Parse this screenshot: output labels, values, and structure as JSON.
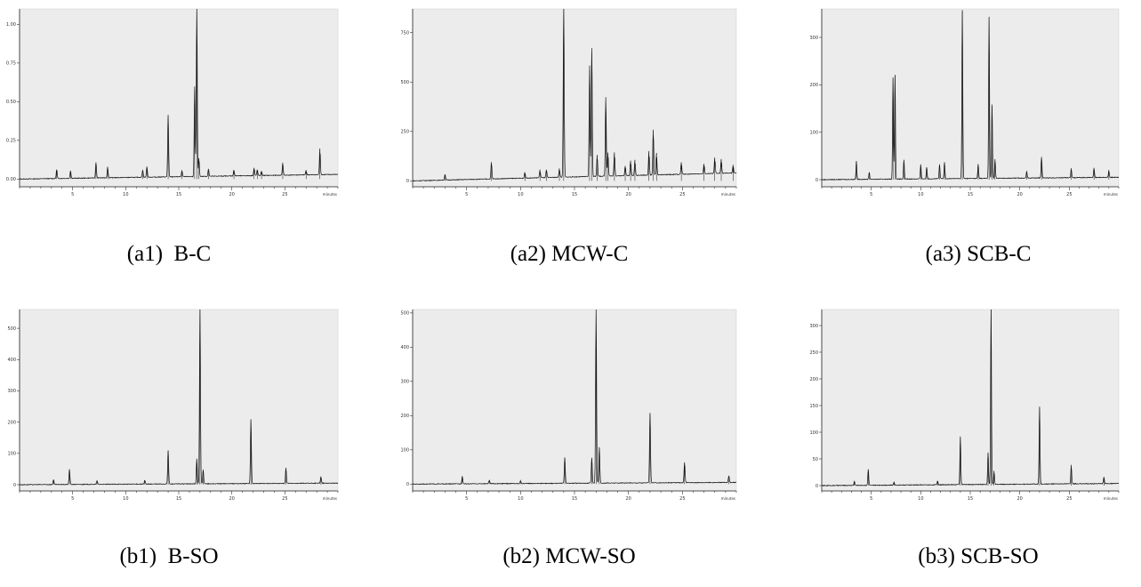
{
  "chart_data": [
    {
      "type": "line",
      "caption": "(a1)  B-C",
      "x_unit_label": "minutes",
      "xlim": [
        0,
        30
      ],
      "ylim": [
        -0.05,
        1.1
      ],
      "x_ticks": [
        5,
        10,
        15,
        20,
        25
      ],
      "y_ticks": [
        0.0,
        0.25,
        0.5,
        0.75,
        1.0
      ],
      "y_tick_labels": [
        "0.00",
        "0.25",
        "0.50",
        "0.75",
        "1.00"
      ],
      "baseline_start": 0.0,
      "baseline_end": 0.03,
      "peaks": [
        [
          3.5,
          0.06
        ],
        [
          4.8,
          0.05
        ],
        [
          7.2,
          0.1
        ],
        [
          8.3,
          0.07
        ],
        [
          11.6,
          0.05
        ],
        [
          12.0,
          0.07
        ],
        [
          14.0,
          0.4
        ],
        [
          15.3,
          0.04
        ],
        [
          16.5,
          0.58
        ],
        [
          16.7,
          1.1
        ],
        [
          16.9,
          0.12
        ],
        [
          17.8,
          0.05
        ],
        [
          20.2,
          0.04
        ],
        [
          22.1,
          0.05
        ],
        [
          22.4,
          0.04
        ],
        [
          22.8,
          0.03
        ],
        [
          24.8,
          0.08
        ],
        [
          27.0,
          0.03
        ],
        [
          28.3,
          0.17
        ]
      ]
    },
    {
      "type": "line",
      "caption": "(a2) MCW-C",
      "x_unit_label": "minutes",
      "xlim": [
        0,
        30
      ],
      "ylim": [
        -30,
        870
      ],
      "x_ticks": [
        5,
        10,
        15,
        20,
        25
      ],
      "y_ticks": [
        0,
        250,
        500,
        750
      ],
      "y_tick_labels": [
        "0",
        "250",
        "500",
        "750"
      ],
      "baseline_start": 0,
      "baseline_end": 40,
      "peaks": [
        [
          3.0,
          30
        ],
        [
          7.3,
          85
        ],
        [
          10.4,
          30
        ],
        [
          11.8,
          40
        ],
        [
          12.4,
          40
        ],
        [
          13.6,
          45
        ],
        [
          14.0,
          870
        ],
        [
          16.4,
          560
        ],
        [
          16.6,
          650
        ],
        [
          17.1,
          110
        ],
        [
          17.9,
          400
        ],
        [
          18.1,
          120
        ],
        [
          18.7,
          120
        ],
        [
          19.7,
          50
        ],
        [
          20.2,
          75
        ],
        [
          20.6,
          80
        ],
        [
          21.9,
          120
        ],
        [
          22.3,
          230
        ],
        [
          22.6,
          110
        ],
        [
          24.9,
          60
        ],
        [
          27.0,
          50
        ],
        [
          28.0,
          80
        ],
        [
          28.6,
          70
        ],
        [
          29.7,
          40
        ]
      ]
    },
    {
      "type": "line",
      "caption": "(a3) SCB-C",
      "x_unit_label": "minutes",
      "xlim": [
        0,
        30
      ],
      "ylim": [
        -15,
        360
      ],
      "x_ticks": [
        5,
        10,
        15,
        20,
        25
      ],
      "y_ticks": [
        0,
        100,
        200,
        300
      ],
      "y_tick_labels": [
        "0",
        "100",
        "200",
        "300"
      ],
      "baseline_start": 0,
      "baseline_end": 5,
      "peaks": [
        [
          3.5,
          38
        ],
        [
          4.8,
          15
        ],
        [
          7.2,
          215
        ],
        [
          7.4,
          220
        ],
        [
          8.3,
          40
        ],
        [
          10.0,
          30
        ],
        [
          10.6,
          25
        ],
        [
          11.9,
          30
        ],
        [
          12.4,
          35
        ],
        [
          14.2,
          355
        ],
        [
          15.8,
          30
        ],
        [
          16.9,
          340
        ],
        [
          17.2,
          155
        ],
        [
          17.5,
          40
        ],
        [
          20.7,
          15
        ],
        [
          22.2,
          45
        ],
        [
          25.2,
          20
        ],
        [
          27.5,
          20
        ],
        [
          29.0,
          15
        ]
      ]
    },
    {
      "type": "line",
      "caption": "(b1)  B-SO",
      "x_unit_label": "minutes",
      "xlim": [
        0,
        30
      ],
      "ylim": [
        -20,
        560
      ],
      "x_ticks": [
        5,
        10,
        15,
        20,
        25
      ],
      "y_ticks": [
        0,
        100,
        200,
        300,
        400,
        500
      ],
      "y_tick_labels": [
        "0",
        "100",
        "200",
        "300",
        "400",
        "500"
      ],
      "baseline_start": 0,
      "baseline_end": 5,
      "peaks": [
        [
          3.2,
          15
        ],
        [
          4.7,
          48
        ],
        [
          7.3,
          12
        ],
        [
          11.8,
          12
        ],
        [
          14.0,
          108
        ],
        [
          16.7,
          80
        ],
        [
          17.0,
          560
        ],
        [
          17.3,
          45
        ],
        [
          21.8,
          205
        ],
        [
          25.1,
          50
        ],
        [
          28.4,
          22
        ]
      ]
    },
    {
      "type": "line",
      "caption": "(b2) MCW-SO",
      "x_unit_label": "minutes",
      "xlim": [
        0,
        30
      ],
      "ylim": [
        -20,
        510
      ],
      "x_ticks": [
        5,
        10,
        15,
        20,
        25
      ],
      "y_ticks": [
        0,
        100,
        200,
        300,
        400,
        500
      ],
      "y_tick_labels": [
        "0",
        "100",
        "200",
        "300",
        "400",
        "500"
      ],
      "baseline_start": 0,
      "baseline_end": 5,
      "peaks": [
        [
          4.6,
          22
        ],
        [
          7.1,
          10
        ],
        [
          10.0,
          8
        ],
        [
          14.1,
          75
        ],
        [
          16.6,
          75
        ],
        [
          17.0,
          510
        ],
        [
          17.3,
          105
        ],
        [
          22.0,
          205
        ],
        [
          25.2,
          60
        ],
        [
          29.3,
          20
        ]
      ]
    },
    {
      "type": "line",
      "caption": "(b3) SCB-SO",
      "x_unit_label": "minutes",
      "xlim": [
        0,
        30
      ],
      "ylim": [
        -10,
        330
      ],
      "x_ticks": [
        5,
        10,
        15,
        20,
        25
      ],
      "y_ticks": [
        0,
        50,
        100,
        150,
        200,
        250,
        300
      ],
      "y_tick_labels": [
        "0",
        "50",
        "100",
        "150",
        "200",
        "250",
        "300"
      ],
      "baseline_start": 0,
      "baseline_end": 4,
      "peaks": [
        [
          3.3,
          8
        ],
        [
          4.7,
          30
        ],
        [
          7.3,
          6
        ],
        [
          11.7,
          8
        ],
        [
          14.0,
          90
        ],
        [
          16.8,
          60
        ],
        [
          17.1,
          330
        ],
        [
          17.4,
          25
        ],
        [
          22.0,
          145
        ],
        [
          25.2,
          35
        ],
        [
          28.5,
          12
        ]
      ]
    }
  ]
}
